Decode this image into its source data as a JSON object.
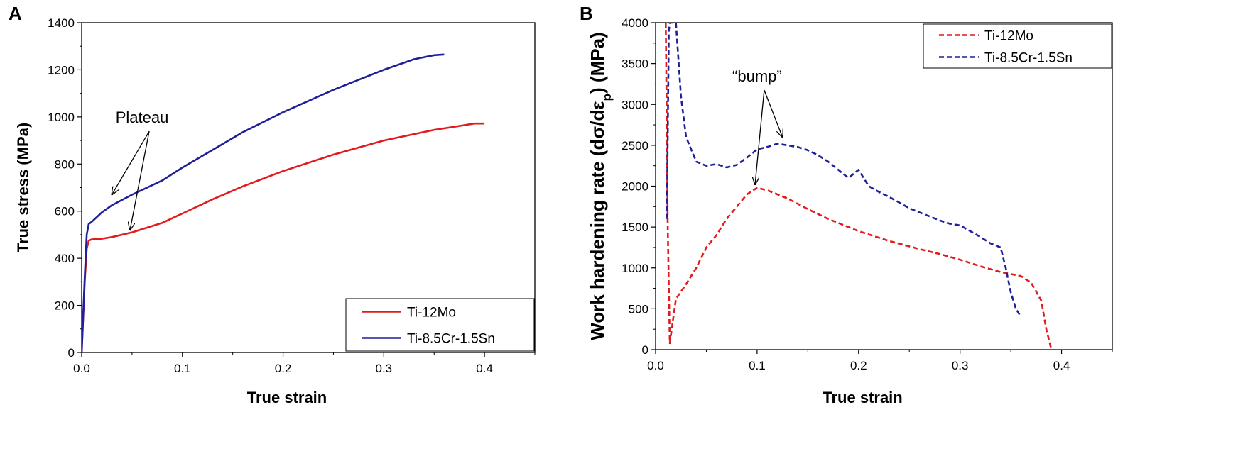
{
  "figure": {
    "panels": [
      "A",
      "B"
    ]
  },
  "chart_data": [
    {
      "panel": "A",
      "type": "line",
      "title": "",
      "xlabel": "True strain",
      "ylabel": "True stress (MPa)",
      "xlim": [
        0.0,
        0.45
      ],
      "ylim": [
        0,
        1400
      ],
      "xticks": [
        0.0,
        0.1,
        0.2,
        0.3,
        0.4
      ],
      "xtick_labels": [
        "0.0",
        "0.1",
        "0.2",
        "0.3",
        "0.4"
      ],
      "yticks": [
        0,
        200,
        400,
        600,
        800,
        1000,
        1200,
        1400
      ],
      "ytick_labels": [
        "0",
        "200",
        "400",
        "600",
        "800",
        "1000",
        "1200",
        "1400"
      ],
      "legend_position": "bottom-right",
      "series": [
        {
          "name": "Ti-12Mo",
          "color": "#e31a1c",
          "style": "solid",
          "x": [
            0,
            0.003,
            0.005,
            0.007,
            0.01,
            0.02,
            0.03,
            0.05,
            0.08,
            0.1,
            0.13,
            0.16,
            0.2,
            0.25,
            0.3,
            0.35,
            0.38,
            0.39,
            0.4
          ],
          "y": [
            0,
            300,
            440,
            475,
            480,
            483,
            490,
            510,
            550,
            590,
            650,
            705,
            770,
            840,
            900,
            945,
            965,
            972,
            972
          ]
        },
        {
          "name": "Ti-8.5Cr-1.5Sn",
          "color": "#1f1f9a",
          "style": "solid",
          "x": [
            0,
            0.003,
            0.005,
            0.007,
            0.01,
            0.02,
            0.03,
            0.05,
            0.08,
            0.1,
            0.13,
            0.16,
            0.2,
            0.25,
            0.3,
            0.33,
            0.35,
            0.36
          ],
          "y": [
            0,
            320,
            500,
            545,
            555,
            595,
            625,
            670,
            730,
            785,
            860,
            935,
            1020,
            1115,
            1200,
            1245,
            1262,
            1265
          ]
        }
      ],
      "annotations": [
        {
          "text": "Plateau",
          "x": 0.06,
          "y": 975,
          "arrows_to": [
            [
              0.03,
              670
            ],
            [
              0.048,
              520
            ]
          ]
        }
      ]
    },
    {
      "panel": "B",
      "type": "line",
      "title": "",
      "xlabel": "True strain",
      "ylabel_main": "Work hardening rate (d",
      "ylabel_sigma": "σ",
      "ylabel_slash": "/d",
      "ylabel_eps": "ε",
      "ylabel_sub": "p",
      "ylabel_end": ") (MPa)",
      "xlim": [
        0.0,
        0.45
      ],
      "ylim": [
        0,
        4000
      ],
      "xticks": [
        0.0,
        0.1,
        0.2,
        0.3,
        0.4
      ],
      "xtick_labels": [
        "0.0",
        "0.1",
        "0.2",
        "0.3",
        "0.4"
      ],
      "yticks": [
        0,
        500,
        1000,
        1500,
        2000,
        2500,
        3000,
        3500,
        4000
      ],
      "ytick_labels": [
        "0",
        "500",
        "1000",
        "1500",
        "2000",
        "2500",
        "3000",
        "3500",
        "4000"
      ],
      "legend_position": "top-right",
      "series": [
        {
          "name": "Ti-12Mo",
          "color": "#e31a1c",
          "style": "dashed",
          "x": [
            0.01,
            0.012,
            0.014,
            0.02,
            0.03,
            0.04,
            0.05,
            0.06,
            0.07,
            0.08,
            0.09,
            0.1,
            0.11,
            0.12,
            0.13,
            0.15,
            0.17,
            0.2,
            0.23,
            0.26,
            0.28,
            0.3,
            0.32,
            0.34,
            0.36,
            0.37,
            0.38,
            0.385,
            0.39
          ],
          "y": [
            4000,
            1500,
            80,
            620,
            800,
            1000,
            1250,
            1400,
            1600,
            1750,
            1900,
            1980,
            1950,
            1900,
            1850,
            1720,
            1600,
            1450,
            1330,
            1230,
            1170,
            1100,
            1020,
            950,
            900,
            820,
            600,
            250,
            0
          ]
        },
        {
          "name": "Ti-8.5Cr-1.5Sn",
          "color": "#1f1f9a",
          "style": "dashed",
          "x": [
            0.011,
            0.012,
            0.013,
            0.014,
            0.015,
            0.02,
            0.025,
            0.03,
            0.04,
            0.05,
            0.06,
            0.07,
            0.08,
            0.09,
            0.1,
            0.11,
            0.12,
            0.13,
            0.14,
            0.15,
            0.16,
            0.17,
            0.18,
            0.19,
            0.2,
            0.21,
            0.22,
            0.23,
            0.24,
            0.25,
            0.26,
            0.27,
            0.28,
            0.29,
            0.3,
            0.31,
            0.32,
            0.33,
            0.34,
            0.345,
            0.35,
            0.355,
            0.36
          ],
          "y": [
            1600,
            2600,
            3900,
            4000,
            4000,
            4000,
            3100,
            2600,
            2300,
            2250,
            2270,
            2230,
            2260,
            2350,
            2450,
            2480,
            2520,
            2500,
            2480,
            2440,
            2380,
            2300,
            2200,
            2100,
            2200,
            2000,
            1930,
            1870,
            1800,
            1730,
            1680,
            1630,
            1580,
            1540,
            1520,
            1450,
            1380,
            1300,
            1250,
            1000,
            700,
            500,
            400
          ]
        }
      ],
      "annotations": [
        {
          "text": "“bump”",
          "x": 0.1,
          "y": 3280,
          "arrows_to": [
            [
              0.098,
              2020
            ],
            [
              0.125,
              2600
            ]
          ]
        }
      ]
    }
  ]
}
